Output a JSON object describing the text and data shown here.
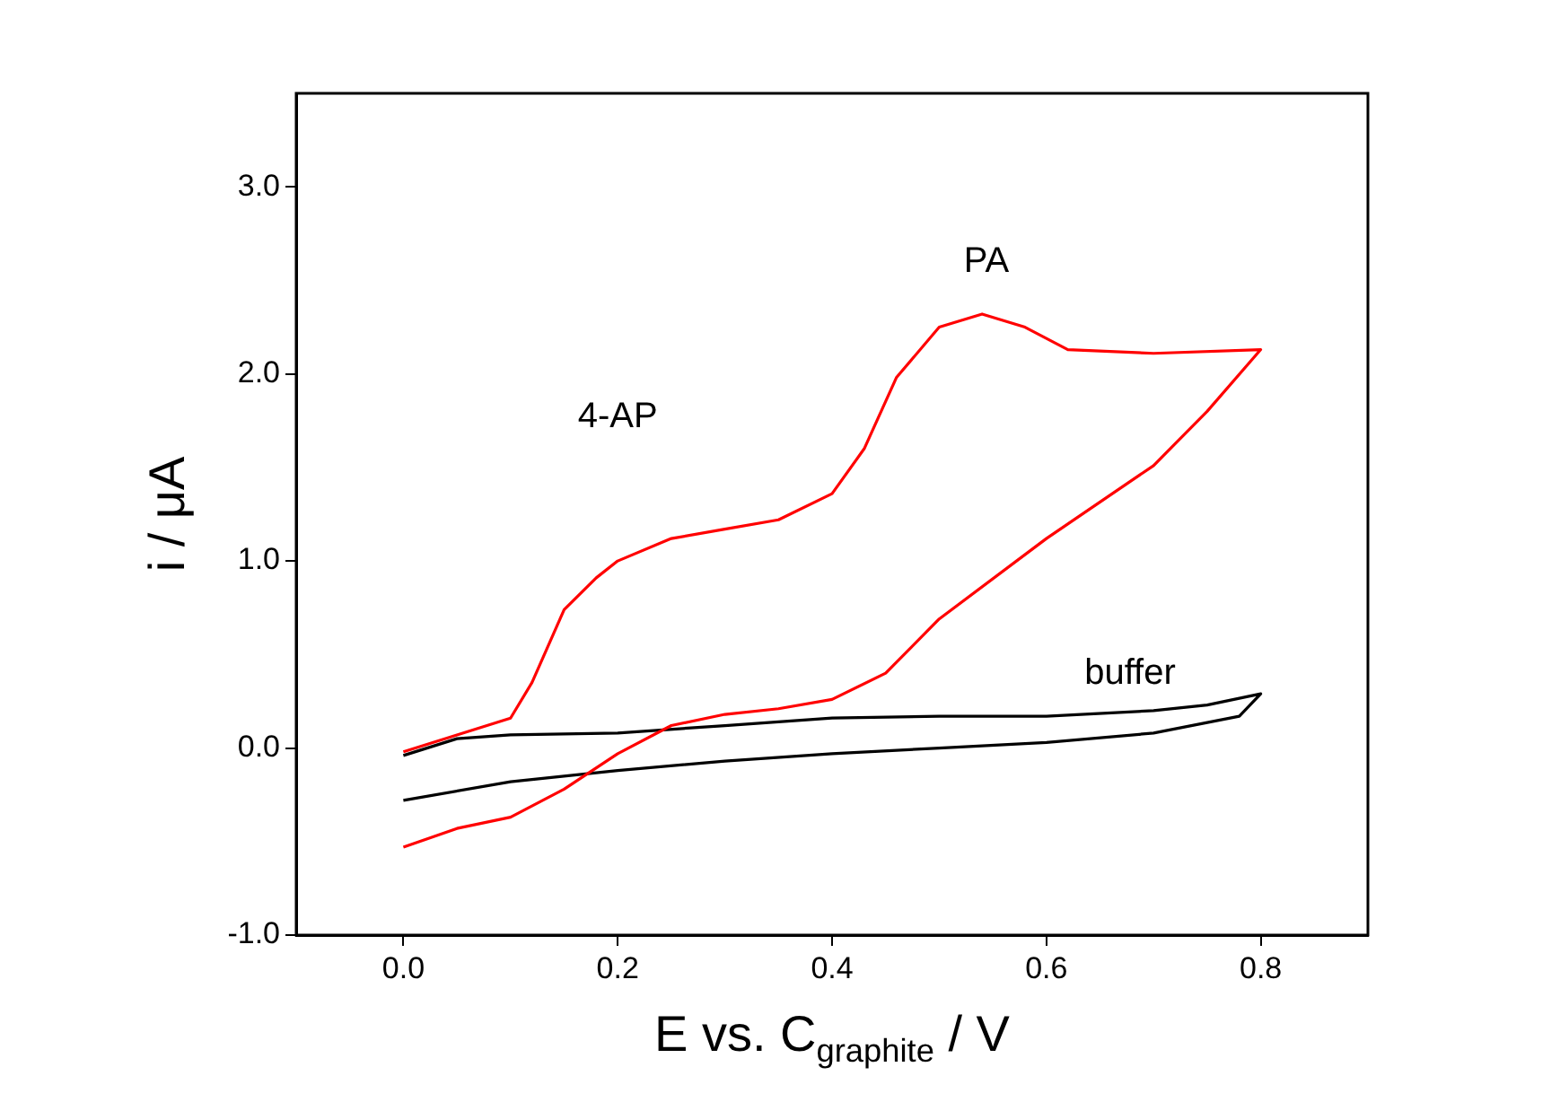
{
  "chart_data": {
    "type": "line",
    "xlabel": "E vs. C$_{graphite}$ / V",
    "ylabel": "i / μA",
    "xlim": [
      -0.1,
      0.9
    ],
    "xticks": [
      {
        "value": 0,
        "label": "0.0"
      },
      {
        "value": 0.2,
        "label": "0.2"
      },
      {
        "value": 0.4,
        "label": "0.4"
      },
      {
        "value": 0.6,
        "label": "0.6"
      },
      {
        "value": 0.8,
        "label": "0.8"
      }
    ],
    "ylim": [
      -1,
      3.5
    ],
    "yticks": [
      {
        "value": -1,
        "label": "-1.0"
      },
      {
        "value": 0,
        "label": "0.0"
      },
      {
        "value": 1,
        "label": "1.0"
      },
      {
        "value": 2,
        "label": "2.0"
      },
      {
        "value": 3,
        "label": "3.0"
      }
    ],
    "grid": false,
    "legend": false,
    "marker": "none",
    "line_style": "solid",
    "series": [
      {
        "color": "#ff0000",
        "x": [
          0,
          0.05,
          0.1,
          0.12,
          0.15,
          0.18,
          0.2,
          0.25,
          0.3,
          0.35,
          0.4,
          0.43,
          0.46,
          0.5,
          0.54,
          0.58,
          0.62,
          0.7,
          0.8,
          0.75,
          0.7,
          0.6,
          0.5,
          0.45,
          0.4,
          0.35,
          0.3,
          0.25,
          0.2,
          0.15,
          0.1,
          0.05,
          0
        ],
        "values": [
          -0.02,
          0.07,
          0.16,
          0.35,
          0.74,
          0.91,
          1.0,
          1.12,
          1.17,
          1.22,
          1.36,
          1.6,
          1.98,
          2.25,
          2.32,
          2.25,
          2.13,
          2.11,
          2.13,
          1.8,
          1.51,
          1.12,
          0.69,
          0.4,
          0.26,
          0.21,
          0.18,
          0.12,
          -0.03,
          -0.22,
          -0.37,
          -0.43,
          -0.53
        ]
      },
      {
        "color": "#000000",
        "x": [
          0,
          0.05,
          0.1,
          0.2,
          0.3,
          0.4,
          0.5,
          0.6,
          0.7,
          0.75,
          0.8,
          0.78,
          0.7,
          0.6,
          0.5,
          0.4,
          0.3,
          0.2,
          0.1,
          0
        ],
        "values": [
          -0.04,
          0.05,
          0.07,
          0.08,
          0.12,
          0.16,
          0.17,
          0.17,
          0.2,
          0.23,
          0.29,
          0.17,
          0.08,
          0.03,
          0,
          -0.03,
          -0.07,
          -0.12,
          -0.18,
          -0.28
        ]
      }
    ],
    "annotations": [
      "4-AP",
      "PA",
      "buffer"
    ]
  }
}
